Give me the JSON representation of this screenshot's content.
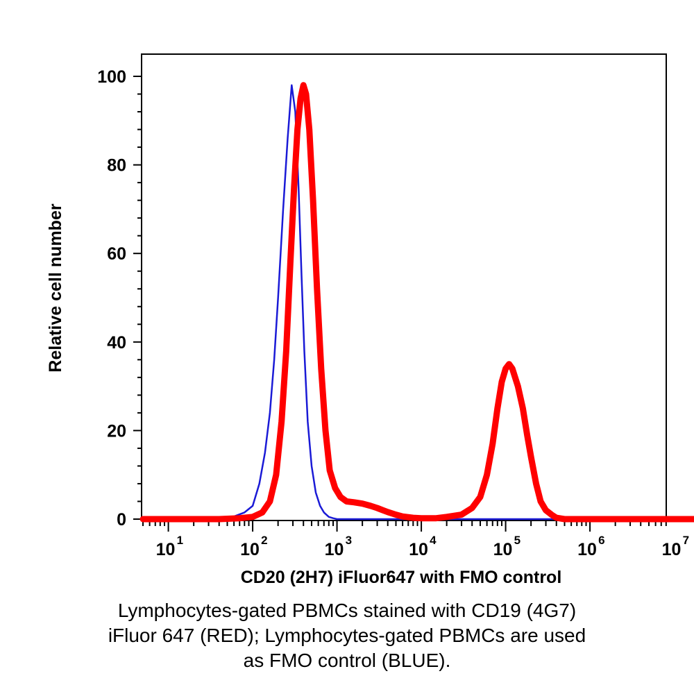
{
  "chart_data": {
    "type": "line",
    "xlabel": "CD20 (2H7) iFluor647 with FMO control",
    "ylabel": "Relative cell number",
    "x_scale": "log10",
    "xlim": [
      5,
      20000000.0
    ],
    "ylim": [
      0,
      100
    ],
    "x_ticks": [
      {
        "base": "10",
        "exp": "1",
        "value": 10
      },
      {
        "base": "10",
        "exp": "2",
        "value": 100
      },
      {
        "base": "10",
        "exp": "3",
        "value": 1000
      },
      {
        "base": "10",
        "exp": "4",
        "value": 10000
      },
      {
        "base": "10",
        "exp": "5",
        "value": 100000
      },
      {
        "base": "10",
        "exp": "6",
        "value": 1000000
      },
      {
        "base": "10",
        "exp": "7",
        "value": 10000000
      }
    ],
    "y_ticks": [
      "0",
      "20",
      "40",
      "60",
      "80",
      "100"
    ],
    "grid": false,
    "legend": "none",
    "series": [
      {
        "color": "#1a1ad6",
        "x": [
          5,
          20,
          40,
          60,
          80,
          100,
          120,
          140,
          160,
          180,
          200,
          230,
          260,
          290,
          320,
          350,
          380,
          410,
          450,
          500,
          560,
          630,
          700,
          800,
          900,
          1000,
          2000,
          10000.0,
          100000.0,
          1000000.0,
          20000000.0
        ],
        "y": [
          0,
          0,
          0.2,
          0.6,
          1.5,
          3,
          8,
          15,
          24,
          36,
          50,
          70,
          86,
          98,
          92,
          75,
          55,
          38,
          22,
          12,
          6,
          3,
          1.5,
          0.5,
          0.2,
          0,
          0,
          0,
          0,
          0,
          0
        ]
      },
      {
        "color": "#ff0000",
        "x": [
          5,
          40,
          70,
          100,
          130,
          160,
          190,
          220,
          250,
          280,
          310,
          340,
          370,
          400,
          430,
          470,
          520,
          580,
          650,
          730,
          820,
          950,
          1100,
          1300,
          1600,
          2000,
          2500,
          3000,
          3500,
          4000,
          5000,
          6000,
          8000,
          10000,
          15000,
          20000,
          30000,
          40000,
          50000,
          60000,
          70000,
          80000,
          90000,
          100000,
          110000,
          120000,
          140000,
          160000,
          180000,
          200000,
          230000,
          260000,
          300000,
          350000,
          400000,
          500000,
          1000000.0,
          20000000.0
        ],
        "y": [
          0,
          0,
          0.2,
          0.5,
          1.5,
          4,
          10,
          22,
          38,
          58,
          75,
          88,
          95,
          98,
          96,
          88,
          72,
          52,
          34,
          20,
          11,
          7,
          5,
          4,
          3.8,
          3.5,
          3,
          2.5,
          2,
          1.6,
          1,
          0.6,
          0.3,
          0.2,
          0.2,
          0.5,
          1,
          2.5,
          5,
          10,
          17,
          25,
          31,
          34,
          35,
          34,
          30,
          25,
          19,
          14,
          8,
          4,
          2,
          1,
          0.3,
          0,
          0,
          0
        ]
      }
    ]
  },
  "caption": [
    "Lymphocytes-gated PBMCs stained with CD19 (4G7)",
    "iFluor 647 (RED); Lymphocytes-gated PBMCs are used",
    "as FMO control (BLUE)."
  ]
}
